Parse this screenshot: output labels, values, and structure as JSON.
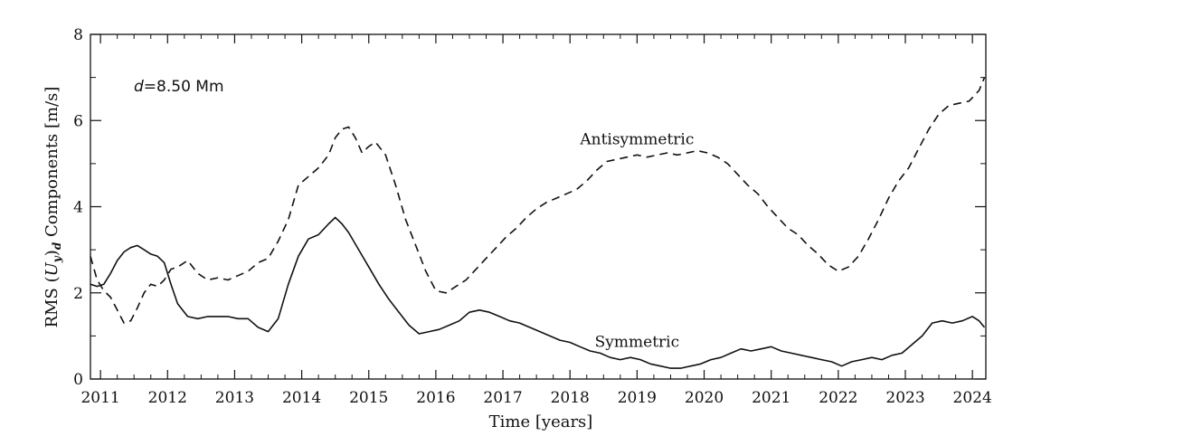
{
  "chart_data": {
    "type": "line",
    "title": "",
    "xlabel": "Time [years]",
    "ylabel": {
      "prefix": "RMS (",
      "var": "U",
      "sub1": "y",
      "close": ")",
      "sub2": "d",
      "suffix": " Components [m/s]"
    },
    "xlim": [
      2010.85,
      2024.2
    ],
    "ylim": [
      0,
      8
    ],
    "xticks": [
      2011,
      2012,
      2013,
      2014,
      2015,
      2016,
      2017,
      2018,
      2019,
      2020,
      2021,
      2022,
      2023,
      2024
    ],
    "xtick_labels": [
      "2011",
      "2012",
      "2013",
      "2014",
      "2015",
      "2016",
      "2017",
      "2018",
      "2019",
      "2020",
      "2021",
      "2022",
      "2023",
      "2024"
    ],
    "yticks": [
      0,
      2,
      4,
      6,
      8
    ],
    "ytick_labels": [
      "0",
      "2",
      "4",
      "6",
      "8"
    ],
    "grid": false,
    "annotation_param": {
      "var": "d",
      "text": "=8.50 Mm"
    },
    "series": [
      {
        "name": "Antisymmetric",
        "style": "dashed",
        "color": "#111111",
        "x": [
          2010.85,
          2010.95,
          2011.05,
          2011.15,
          2011.25,
          2011.35,
          2011.45,
          2011.55,
          2011.65,
          2011.75,
          2011.85,
          2011.95,
          2012.05,
          2012.15,
          2012.3,
          2012.45,
          2012.6,
          2012.75,
          2012.9,
          2013.05,
          2013.2,
          2013.35,
          2013.5,
          2013.65,
          2013.8,
          2013.95,
          2014.1,
          2014.25,
          2014.4,
          2014.5,
          2014.6,
          2014.7,
          2014.8,
          2014.9,
          2015.0,
          2015.1,
          2015.25,
          2015.4,
          2015.55,
          2015.7,
          2015.85,
          2016.0,
          2016.15,
          2016.3,
          2016.45,
          2016.6,
          2016.75,
          2016.9,
          2017.05,
          2017.2,
          2017.35,
          2017.5,
          2017.65,
          2017.8,
          2017.95,
          2018.1,
          2018.25,
          2018.4,
          2018.55,
          2018.7,
          2018.85,
          2019.0,
          2019.15,
          2019.3,
          2019.45,
          2019.6,
          2019.75,
          2019.9,
          2020.05,
          2020.2,
          2020.35,
          2020.5,
          2020.65,
          2020.8,
          2020.95,
          2021.1,
          2021.25,
          2021.4,
          2021.55,
          2021.7,
          2021.85,
          2022.0,
          2022.15,
          2022.3,
          2022.45,
          2022.6,
          2022.75,
          2022.9,
          2023.05,
          2023.2,
          2023.35,
          2023.5,
          2023.65,
          2023.8,
          2023.95,
          2024.1,
          2024.18
        ],
        "values": [
          2.85,
          2.3,
          2.05,
          1.9,
          1.6,
          1.3,
          1.35,
          1.65,
          2.0,
          2.2,
          2.15,
          2.3,
          2.55,
          2.6,
          2.75,
          2.45,
          2.3,
          2.35,
          2.3,
          2.4,
          2.5,
          2.7,
          2.8,
          3.2,
          3.7,
          4.5,
          4.7,
          4.9,
          5.2,
          5.6,
          5.8,
          5.85,
          5.6,
          5.25,
          5.4,
          5.5,
          5.2,
          4.5,
          3.7,
          3.1,
          2.5,
          2.05,
          2.0,
          2.15,
          2.3,
          2.55,
          2.8,
          3.05,
          3.3,
          3.5,
          3.75,
          3.95,
          4.1,
          4.2,
          4.3,
          4.4,
          4.6,
          4.85,
          5.05,
          5.1,
          5.15,
          5.2,
          5.15,
          5.2,
          5.25,
          5.2,
          5.25,
          5.3,
          5.25,
          5.15,
          5.0,
          4.75,
          4.5,
          4.3,
          4.0,
          3.75,
          3.5,
          3.35,
          3.1,
          2.9,
          2.65,
          2.5,
          2.6,
          2.85,
          3.25,
          3.7,
          4.2,
          4.6,
          4.9,
          5.35,
          5.8,
          6.15,
          6.35,
          6.4,
          6.45,
          6.7,
          7.0
        ]
      },
      {
        "name": "Symmetric",
        "style": "solid",
        "color": "#111111",
        "x": [
          2010.85,
          2010.95,
          2011.05,
          2011.15,
          2011.25,
          2011.35,
          2011.45,
          2011.55,
          2011.65,
          2011.75,
          2011.85,
          2011.95,
          2012.05,
          2012.15,
          2012.3,
          2012.45,
          2012.6,
          2012.75,
          2012.9,
          2013.05,
          2013.2,
          2013.35,
          2013.5,
          2013.65,
          2013.8,
          2013.95,
          2014.1,
          2014.25,
          2014.4,
          2014.5,
          2014.6,
          2014.7,
          2014.85,
          2015.0,
          2015.15,
          2015.3,
          2015.45,
          2015.6,
          2015.75,
          2015.9,
          2016.05,
          2016.2,
          2016.35,
          2016.5,
          2016.65,
          2016.8,
          2016.95,
          2017.1,
          2017.25,
          2017.4,
          2017.55,
          2017.7,
          2017.85,
          2018.0,
          2018.15,
          2018.3,
          2018.45,
          2018.6,
          2018.75,
          2018.9,
          2019.05,
          2019.2,
          2019.35,
          2019.5,
          2019.65,
          2019.8,
          2019.95,
          2020.1,
          2020.25,
          2020.4,
          2020.55,
          2020.7,
          2020.85,
          2021.0,
          2021.15,
          2021.3,
          2021.45,
          2021.6,
          2021.75,
          2021.9,
          2022.05,
          2022.2,
          2022.35,
          2022.5,
          2022.65,
          2022.8,
          2022.95,
          2023.1,
          2023.25,
          2023.4,
          2023.55,
          2023.7,
          2023.85,
          2024.0,
          2024.1,
          2024.18
        ],
        "values": [
          2.2,
          2.15,
          2.2,
          2.45,
          2.75,
          2.95,
          3.05,
          3.1,
          3.0,
          2.9,
          2.85,
          2.7,
          2.2,
          1.75,
          1.45,
          1.4,
          1.45,
          1.45,
          1.45,
          1.4,
          1.4,
          1.2,
          1.1,
          1.4,
          2.2,
          2.85,
          3.25,
          3.35,
          3.6,
          3.75,
          3.6,
          3.4,
          3.0,
          2.6,
          2.2,
          1.85,
          1.55,
          1.25,
          1.05,
          1.1,
          1.15,
          1.25,
          1.35,
          1.55,
          1.6,
          1.55,
          1.45,
          1.35,
          1.3,
          1.2,
          1.1,
          1.0,
          0.9,
          0.85,
          0.75,
          0.65,
          0.6,
          0.5,
          0.45,
          0.5,
          0.45,
          0.35,
          0.3,
          0.25,
          0.25,
          0.3,
          0.35,
          0.45,
          0.5,
          0.6,
          0.7,
          0.65,
          0.7,
          0.75,
          0.65,
          0.6,
          0.55,
          0.5,
          0.45,
          0.4,
          0.3,
          0.4,
          0.45,
          0.5,
          0.45,
          0.55,
          0.6,
          0.8,
          1.0,
          1.3,
          1.35,
          1.3,
          1.35,
          1.45,
          1.35,
          1.2
        ]
      }
    ],
    "series_labels": [
      {
        "text": "Antisymmetric",
        "x": 2019.0,
        "y": 5.45
      },
      {
        "text": "Symmetric",
        "x": 2019.0,
        "y": 0.75
      }
    ]
  }
}
